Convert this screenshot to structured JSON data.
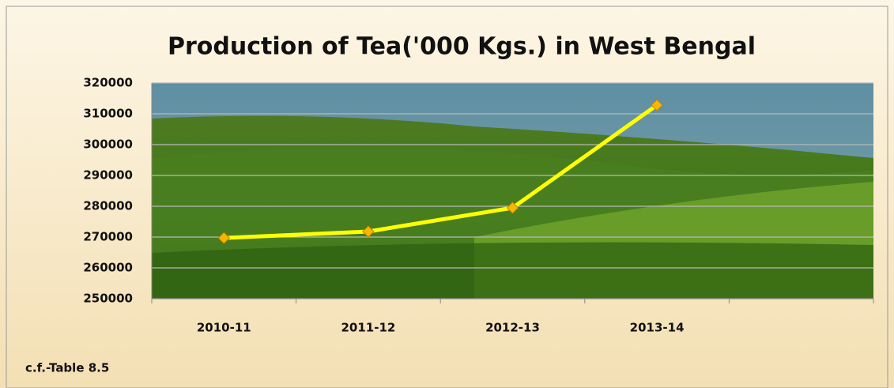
{
  "chart_data": {
    "type": "line",
    "title": "Production of Tea('000 Kgs.) in West Bengal",
    "categories": [
      "2010-11",
      "2011-12",
      "2012-13",
      "2013-14",
      null
    ],
    "values": [
      269700,
      271800,
      279500,
      312800,
      null
    ],
    "color": "#ffff00",
    "marker_color": "#f5b800",
    "ylim": [
      250000,
      320000
    ],
    "yticks": [
      250000,
      260000,
      270000,
      280000,
      290000,
      300000,
      310000,
      320000
    ],
    "grid": true,
    "note": "c.f.-Table 8.5"
  }
}
